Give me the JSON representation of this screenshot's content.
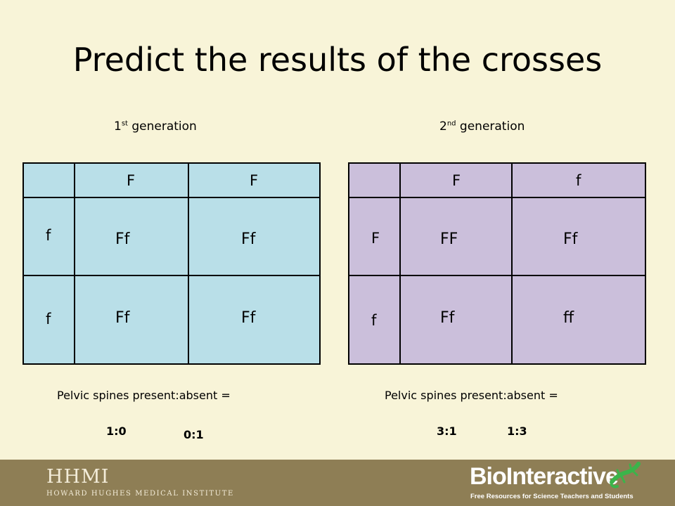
{
  "title": "Predict the results of the crosses",
  "gen1": {
    "label_num": "1",
    "label_sup": "st",
    "label_text": " generation",
    "col_headers": [
      "F",
      "F"
    ],
    "row_headers": [
      "f",
      "f"
    ],
    "cells": [
      [
        "Ff",
        "Ff"
      ],
      [
        "Ff",
        "Ff"
      ]
    ],
    "ratio_label": "Pelvic spines present:absent =",
    "options": [
      "1:0",
      "0:1"
    ]
  },
  "gen2": {
    "label_num": "2",
    "label_sup": "nd",
    "label_text": " generation",
    "col_headers": [
      "F",
      "f"
    ],
    "row_headers": [
      "F",
      "f"
    ],
    "cells": [
      [
        "FF",
        "Ff"
      ],
      [
        "Ff",
        "ff"
      ]
    ],
    "ratio_label": "Pelvic spines present:absent =",
    "options": [
      "3:1",
      "1:3"
    ]
  },
  "footer": {
    "hhmi_mark": "HHMI",
    "hhmi_name": "HOWARD HUGHES MEDICAL INSTITUTE",
    "bio_logo": "BioInteractive",
    "bio_tagline": "Free Resources for Science Teachers and Students",
    "gecko_icon": "gecko-icon"
  },
  "colors": {
    "background": "#f8f4d8",
    "gen1_fill": "#b9dfe8",
    "gen2_fill": "#cbbfdb",
    "footer": "#8e7e55"
  }
}
